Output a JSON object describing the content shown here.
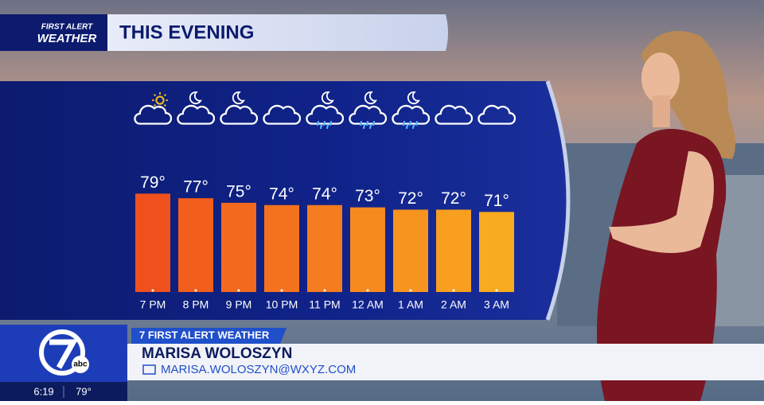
{
  "chart_data": {
    "type": "bar",
    "title": "THIS EVENING",
    "categories": [
      "7 PM",
      "8 PM",
      "9 PM",
      "10 PM",
      "11 PM",
      "12 AM",
      "1 AM",
      "2 AM",
      "3 AM"
    ],
    "values": [
      79,
      77,
      75,
      74,
      74,
      73,
      72,
      72,
      71
    ],
    "value_labels": [
      "79°",
      "77°",
      "75°",
      "74°",
      "74°",
      "73°",
      "72°",
      "72°",
      "71°"
    ],
    "colors": [
      "#f0501c",
      "#f25e1c",
      "#f3691d",
      "#f4721e",
      "#f57c1f",
      "#f68a1f",
      "#f7941f",
      "#f89f1f",
      "#f8ab1f"
    ],
    "ylim": [
      36,
      80
    ]
  },
  "logo": {
    "line1": "FIRST ALERT",
    "line2": "WEATHER"
  },
  "lower_third": {
    "tag": "7 FIRST ALERT WEATHER",
    "name": "MARISA WOLOSZYN",
    "email": "MARISA.WOLOSZYN@WXYZ.COM"
  },
  "station": {
    "abc": "abc",
    "time": "6:19",
    "temp": "79°"
  }
}
